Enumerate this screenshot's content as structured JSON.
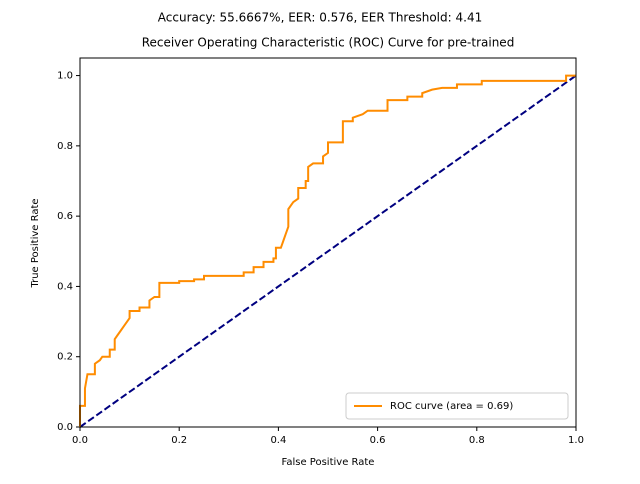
{
  "chart_data": {
    "type": "line",
    "title": "Accuracy: 55.6667%, EER: 0.576, EER Threshold: 4.41",
    "subtitle": "Receiver Operating Characteristic (ROC) Curve for pre-trained",
    "x_label": "False Positive Rate",
    "y_label": "True Positive Rate",
    "xlim": [
      0,
      1
    ],
    "ylim": [
      0,
      1.05
    ],
    "xticks": [
      {
        "value": 0,
        "label": "0.0"
      },
      {
        "value": 0.2,
        "label": "0.2"
      },
      {
        "value": 0.4,
        "label": "0.4"
      },
      {
        "value": 0.6,
        "label": "0.6"
      },
      {
        "value": 0.8,
        "label": "0.8"
      },
      {
        "value": 1,
        "label": "1.0"
      }
    ],
    "yticks": [
      {
        "value": 0,
        "label": "0.0"
      },
      {
        "value": 0.2,
        "label": "0.2"
      },
      {
        "value": 0.4,
        "label": "0.4"
      },
      {
        "value": 0.6,
        "label": "0.6"
      },
      {
        "value": 0.8,
        "label": "0.8"
      },
      {
        "value": 1,
        "label": "1.0"
      }
    ],
    "legend": "lower right",
    "series": [
      {
        "name": "ROC curve (area = 0.69)",
        "color": "#ff8c00",
        "x": [
          0,
          0,
          0.01,
          0.01,
          0.015,
          0.03,
          0.03,
          0.04,
          0.045,
          0.06,
          0.06,
          0.07,
          0.07,
          0.075,
          0.08,
          0.09,
          0.095,
          0.1,
          0.1,
          0.12,
          0.12,
          0.14,
          0.14,
          0.15,
          0.16,
          0.16,
          0.2,
          0.2,
          0.23,
          0.23,
          0.25,
          0.25,
          0.33,
          0.33,
          0.35,
          0.35,
          0.37,
          0.37,
          0.39,
          0.39,
          0.395,
          0.395,
          0.405,
          0.41,
          0.415,
          0.42,
          0.42,
          0.425,
          0.43,
          0.44,
          0.44,
          0.455,
          0.455,
          0.46,
          0.46,
          0.47,
          0.49,
          0.49,
          0.5,
          0.5,
          0.53,
          0.53,
          0.55,
          0.55,
          0.56,
          0.57,
          0.58,
          0.62,
          0.62,
          0.66,
          0.66,
          0.69,
          0.69,
          0.71,
          0.73,
          0.76,
          0.76,
          0.81,
          0.81,
          0.98,
          0.98,
          1
        ],
        "values": [
          0,
          0.06,
          0.06,
          0.11,
          0.15,
          0.15,
          0.18,
          0.19,
          0.2,
          0.2,
          0.22,
          0.22,
          0.25,
          0.26,
          0.27,
          0.29,
          0.3,
          0.31,
          0.33,
          0.33,
          0.34,
          0.34,
          0.36,
          0.37,
          0.37,
          0.41,
          0.41,
          0.415,
          0.415,
          0.42,
          0.42,
          0.43,
          0.43,
          0.44,
          0.44,
          0.455,
          0.455,
          0.47,
          0.47,
          0.48,
          0.48,
          0.51,
          0.51,
          0.53,
          0.55,
          0.57,
          0.62,
          0.63,
          0.64,
          0.65,
          0.68,
          0.68,
          0.7,
          0.7,
          0.74,
          0.75,
          0.75,
          0.77,
          0.78,
          0.81,
          0.81,
          0.87,
          0.87,
          0.88,
          0.885,
          0.89,
          0.9,
          0.9,
          0.93,
          0.93,
          0.94,
          0.94,
          0.95,
          0.96,
          0.965,
          0.965,
          0.975,
          0.975,
          0.985,
          0.985,
          1,
          1
        ]
      }
    ],
    "reference_line": {
      "color": "#000080",
      "x": [
        0,
        1
      ],
      "values": [
        0,
        1
      ]
    }
  }
}
